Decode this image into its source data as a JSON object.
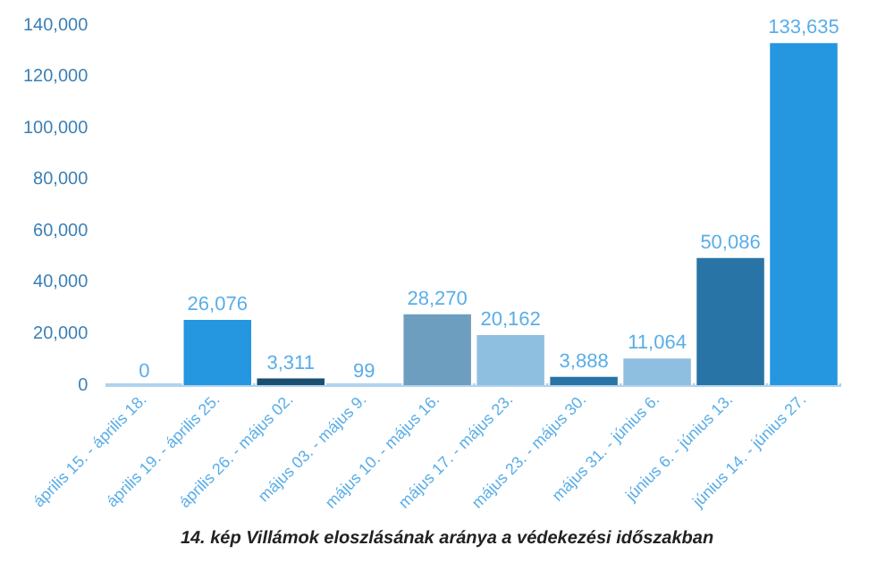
{
  "chart_data": {
    "type": "bar",
    "categories": [
      "április 15. - április 18.",
      "április 19. - április 25.",
      "április 26. - május 02.",
      "május 03. - május 9.",
      "május 10. - május 16.",
      "május 17. - május 23.",
      "május 23. - május 30.",
      "május 31. - június 6.",
      "június 6. - június 13.",
      "június 14. - június 27."
    ],
    "values": [
      0,
      26076,
      3311,
      99,
      28270,
      20162,
      3888,
      11064,
      50086,
      133635
    ],
    "colors": [
      "#2596e0",
      "#2596e0",
      "#1b4f72",
      "#8fbfe0",
      "#6e9ebf",
      "#8fbfe0",
      "#2874a6",
      "#8fbfe0",
      "#2874a6",
      "#2596e0"
    ],
    "ylim": [
      0,
      140000
    ],
    "yticks": [
      {
        "value": 0,
        "label": "0"
      },
      {
        "value": 20000,
        "label": "20,000"
      },
      {
        "value": 40000,
        "label": "40,000"
      },
      {
        "value": 60000,
        "label": "60,000"
      },
      {
        "value": 80000,
        "label": "80,000"
      },
      {
        "value": 100000,
        "label": "100,000"
      },
      {
        "value": 120000,
        "label": "120,000"
      },
      {
        "value": 140000,
        "label": "140,000"
      }
    ],
    "value_labels": [
      "0",
      "26,076",
      "3,311",
      "99",
      "28,270",
      "20,162",
      "3,888",
      "11,064",
      "50,086",
      "133,635"
    ],
    "grid": false,
    "legend": false,
    "annotations": [
      "14. kép Villámok eloszlásának aránya a védekezési időszakban"
    ]
  }
}
